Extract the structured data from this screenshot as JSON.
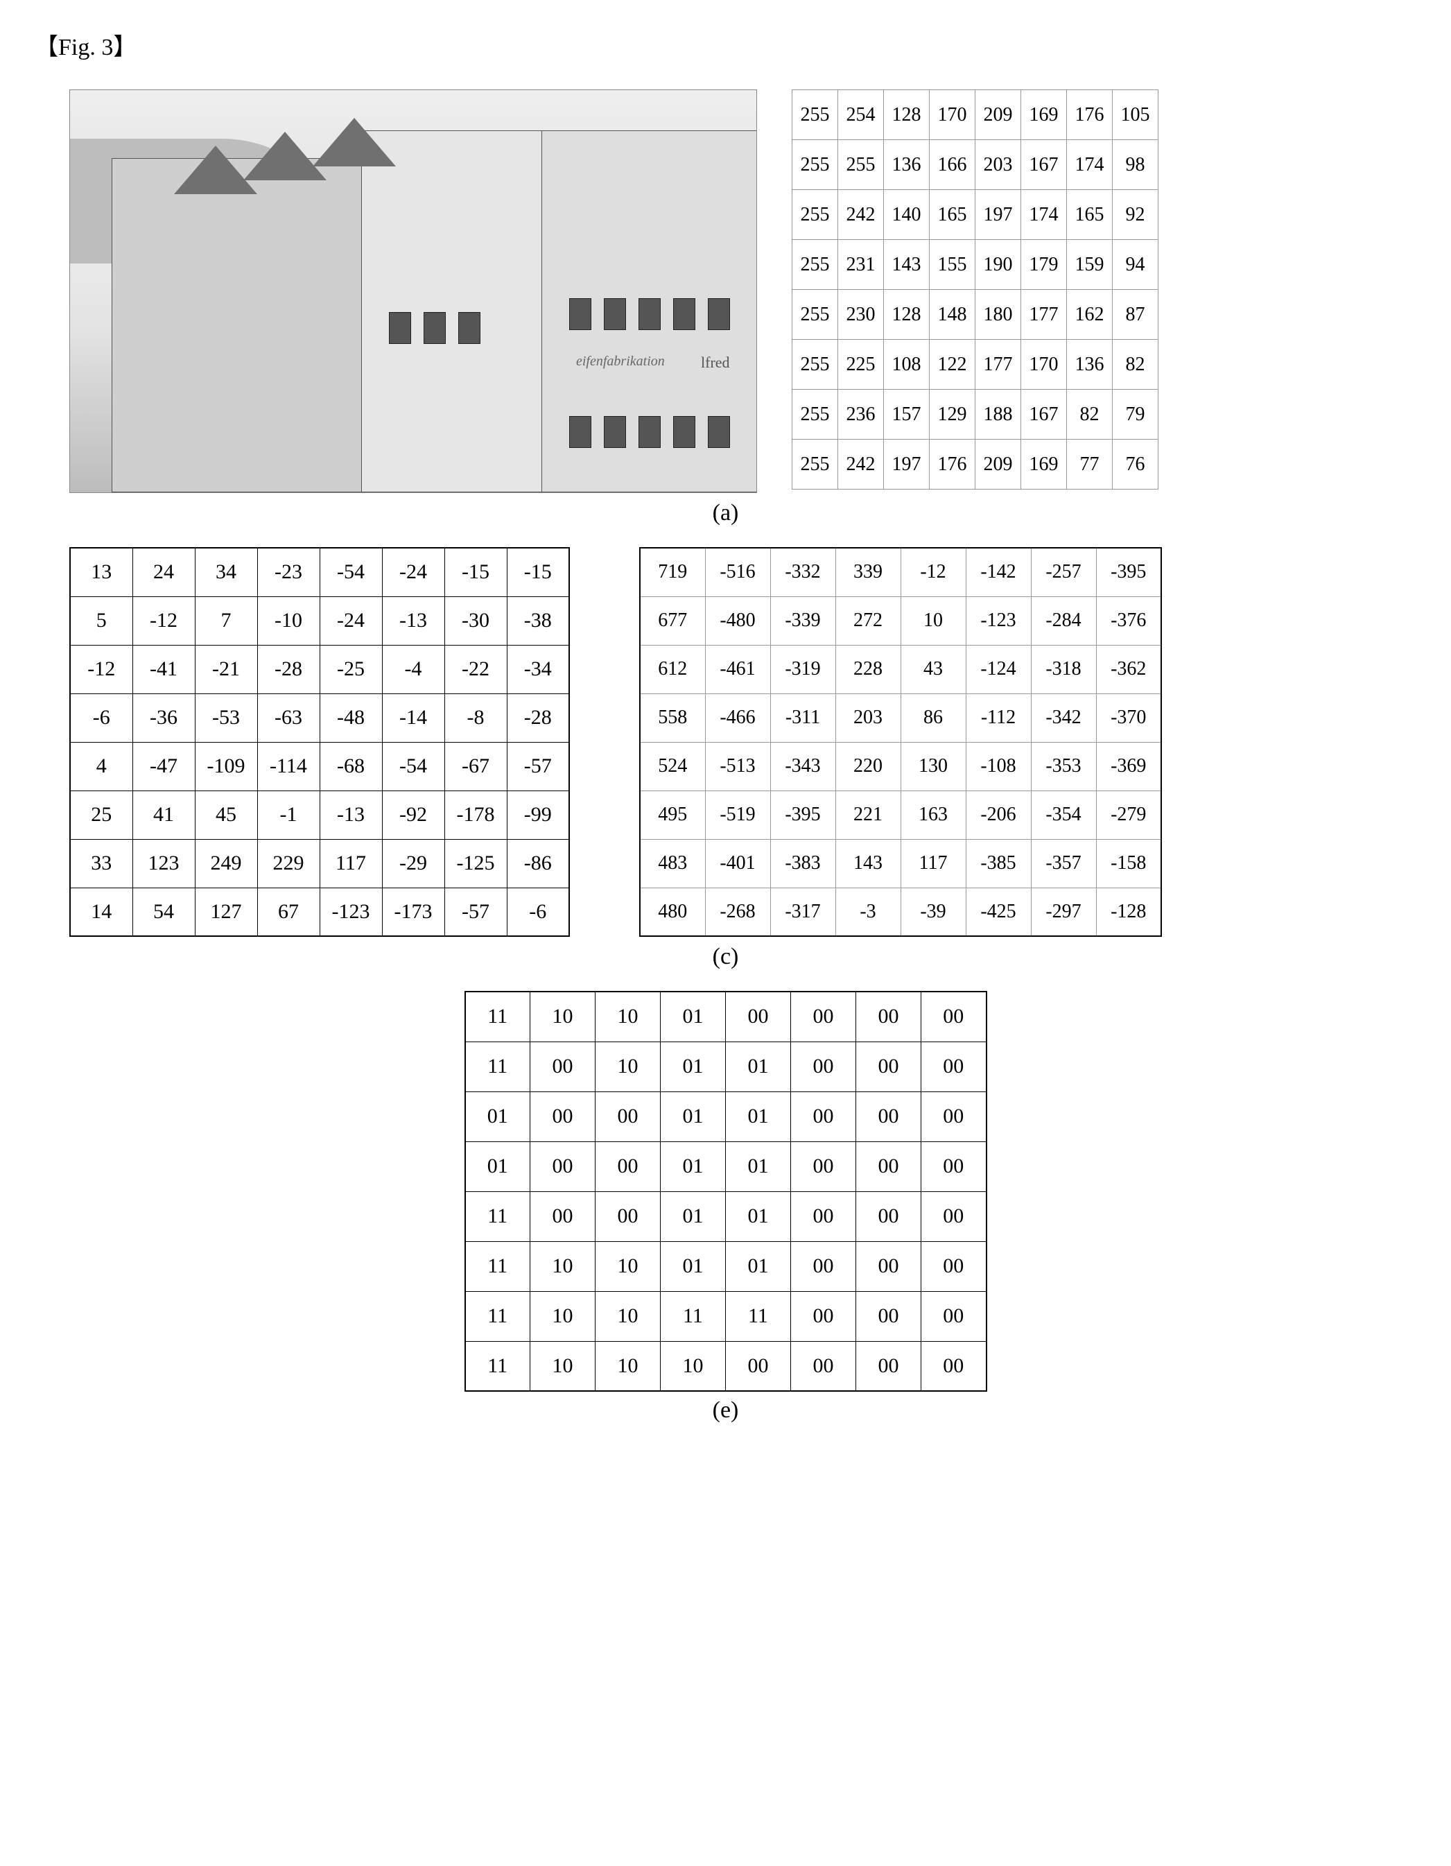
{
  "figure_label": "【Fig. 3】",
  "sublabels": {
    "a": "(a)",
    "c": "(c)",
    "e": "(e)"
  },
  "photo_text": {
    "sign1": "eifenfabrikation",
    "sign2": "lfred"
  },
  "table_a": {
    "rows": [
      [
        255,
        254,
        128,
        170,
        209,
        169,
        176,
        105
      ],
      [
        255,
        255,
        136,
        166,
        203,
        167,
        174,
        98
      ],
      [
        255,
        242,
        140,
        165,
        197,
        174,
        165,
        92
      ],
      [
        255,
        231,
        143,
        155,
        190,
        179,
        159,
        94
      ],
      [
        255,
        230,
        128,
        148,
        180,
        177,
        162,
        87
      ],
      [
        255,
        225,
        108,
        122,
        177,
        170,
        136,
        82
      ],
      [
        255,
        236,
        157,
        129,
        188,
        167,
        82,
        79
      ],
      [
        255,
        242,
        197,
        176,
        209,
        169,
        77,
        76
      ]
    ]
  },
  "table_b": {
    "rows": [
      [
        13,
        24,
        34,
        -23,
        -54,
        -24,
        -15,
        -15
      ],
      [
        5,
        -12,
        7,
        -10,
        -24,
        -13,
        -30,
        -38
      ],
      [
        -12,
        -41,
        -21,
        -28,
        -25,
        -4,
        -22,
        -34
      ],
      [
        -6,
        -36,
        -53,
        -63,
        -48,
        -14,
        -8,
        -28
      ],
      [
        4,
        -47,
        -109,
        -114,
        -68,
        -54,
        -67,
        -57
      ],
      [
        25,
        41,
        45,
        -1,
        -13,
        -92,
        -178,
        -99
      ],
      [
        33,
        123,
        249,
        229,
        117,
        -29,
        -125,
        -86
      ],
      [
        14,
        54,
        127,
        67,
        -123,
        -173,
        -57,
        -6
      ]
    ]
  },
  "table_c": {
    "rows": [
      [
        719,
        -516,
        -332,
        339,
        -12,
        -142,
        -257,
        -395
      ],
      [
        677,
        -480,
        -339,
        272,
        10,
        -123,
        -284,
        -376
      ],
      [
        612,
        -461,
        -319,
        228,
        43,
        -124,
        -318,
        -362
      ],
      [
        558,
        -466,
        -311,
        203,
        86,
        -112,
        -342,
        -370
      ],
      [
        524,
        -513,
        -343,
        220,
        130,
        -108,
        -353,
        -369
      ],
      [
        495,
        -519,
        -395,
        221,
        163,
        -206,
        -354,
        -279
      ],
      [
        483,
        -401,
        -383,
        143,
        117,
        -385,
        -357,
        -158
      ],
      [
        480,
        -268,
        -317,
        -3,
        -39,
        -425,
        -297,
        -128
      ]
    ]
  },
  "table_e": {
    "rows": [
      [
        "11",
        "10",
        "10",
        "01",
        "00",
        "00",
        "00",
        "00"
      ],
      [
        "11",
        "00",
        "10",
        "01",
        "01",
        "00",
        "00",
        "00"
      ],
      [
        "01",
        "00",
        "00",
        "01",
        "01",
        "00",
        "00",
        "00"
      ],
      [
        "01",
        "00",
        "00",
        "01",
        "01",
        "00",
        "00",
        "00"
      ],
      [
        "11",
        "00",
        "00",
        "01",
        "01",
        "00",
        "00",
        "00"
      ],
      [
        "11",
        "10",
        "10",
        "01",
        "01",
        "00",
        "00",
        "00"
      ],
      [
        "11",
        "10",
        "10",
        "11",
        "11",
        "00",
        "00",
        "00"
      ],
      [
        "11",
        "10",
        "10",
        "10",
        "00",
        "00",
        "00",
        "00"
      ]
    ]
  }
}
